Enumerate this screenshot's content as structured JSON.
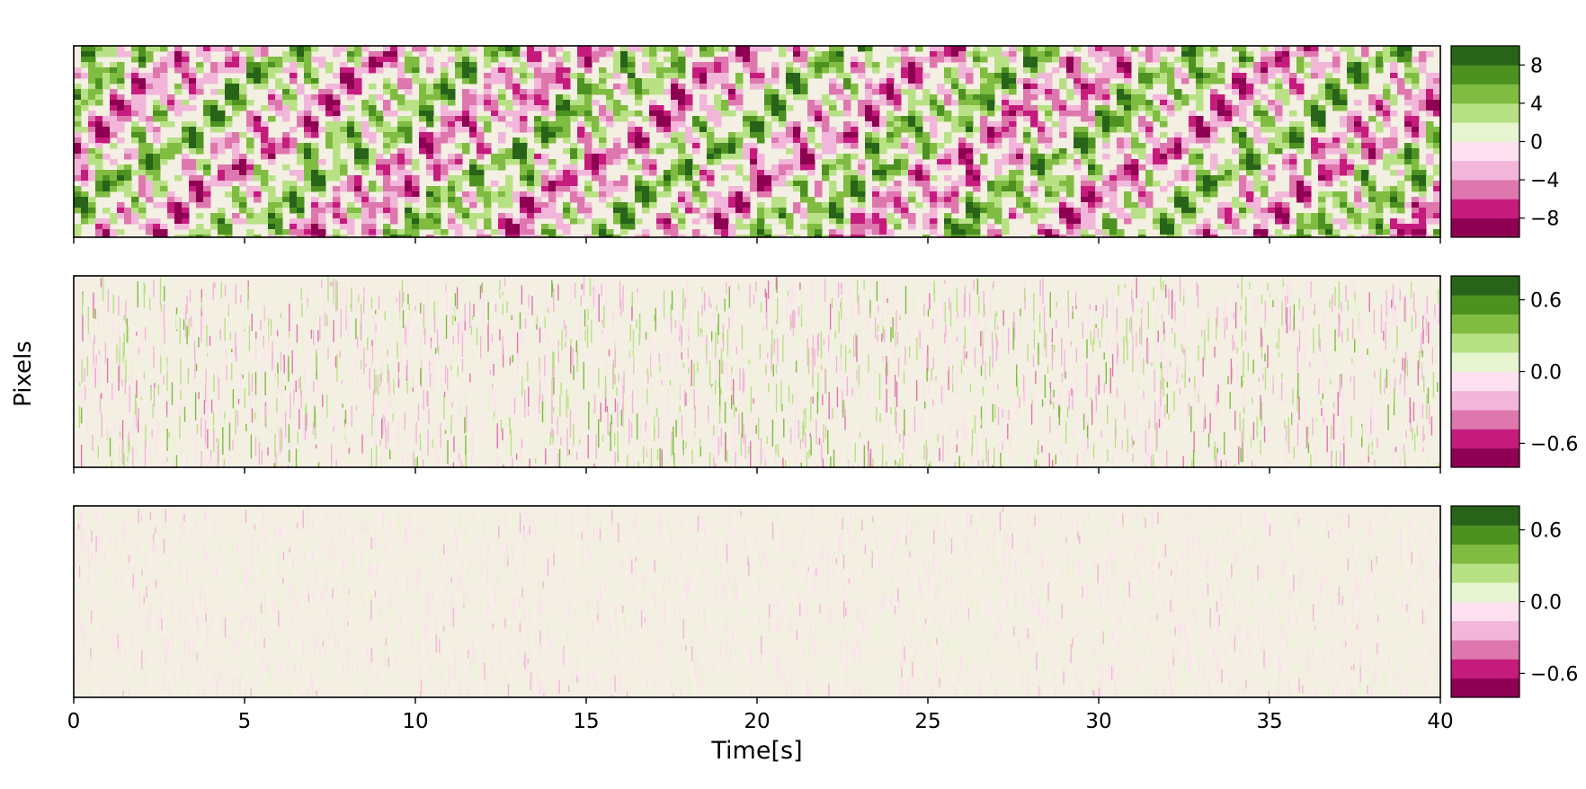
{
  "chart_data": [
    {
      "type": "heatmap",
      "panel": "top",
      "xlabel": "",
      "ylabel": "",
      "xlim": [
        0,
        40
      ],
      "x_ticks": [
        0,
        5,
        10,
        15,
        20,
        25,
        30,
        35,
        40
      ],
      "show_x_tick_labels": false,
      "colormap": "PiYG",
      "colorbar": {
        "range": [
          -10,
          10
        ],
        "levels": 10,
        "ticks": [
          8,
          4,
          0,
          -4,
          -8
        ],
        "tick_labels": [
          "8",
          "4",
          "0",
          "−4",
          "−8"
        ]
      },
      "texture": "smooth"
    },
    {
      "type": "heatmap",
      "panel": "middle",
      "xlabel": "",
      "ylabel": "",
      "xlim": [
        0,
        40
      ],
      "x_ticks": [
        0,
        5,
        10,
        15,
        20,
        25,
        30,
        35,
        40
      ],
      "show_x_tick_labels": false,
      "colormap": "PiYG",
      "colorbar": {
        "range": [
          -0.8,
          0.8
        ],
        "levels": 10,
        "ticks": [
          0.6,
          0.0,
          -0.6
        ],
        "tick_labels": [
          "0.6",
          "0.0",
          "−0.6"
        ]
      },
      "texture": "noisy"
    },
    {
      "type": "heatmap",
      "panel": "bottom",
      "xlabel": "Time[s]",
      "ylabel": "",
      "xlim": [
        0,
        40
      ],
      "x_ticks": [
        0,
        5,
        10,
        15,
        20,
        25,
        30,
        35,
        40
      ],
      "x_tick_labels": [
        "0",
        "5",
        "10",
        "15",
        "20",
        "25",
        "30",
        "35",
        "40"
      ],
      "show_x_tick_labels": true,
      "colormap": "PiYG",
      "colorbar": {
        "range": [
          -0.8,
          0.8
        ],
        "levels": 10,
        "ticks": [
          0.6,
          0.0,
          -0.6
        ],
        "tick_labels": [
          "0.6",
          "0.0",
          "−0.6"
        ]
      },
      "texture": "faint"
    }
  ],
  "shared_ylabel": "Pixels",
  "colors": [
    "#8e0152",
    "#c51b7d",
    "#de77ae",
    "#f1b6da",
    "#fde0ef",
    "#e6f5d0",
    "#b8e186",
    "#7fbc41",
    "#4d9221",
    "#276419"
  ]
}
